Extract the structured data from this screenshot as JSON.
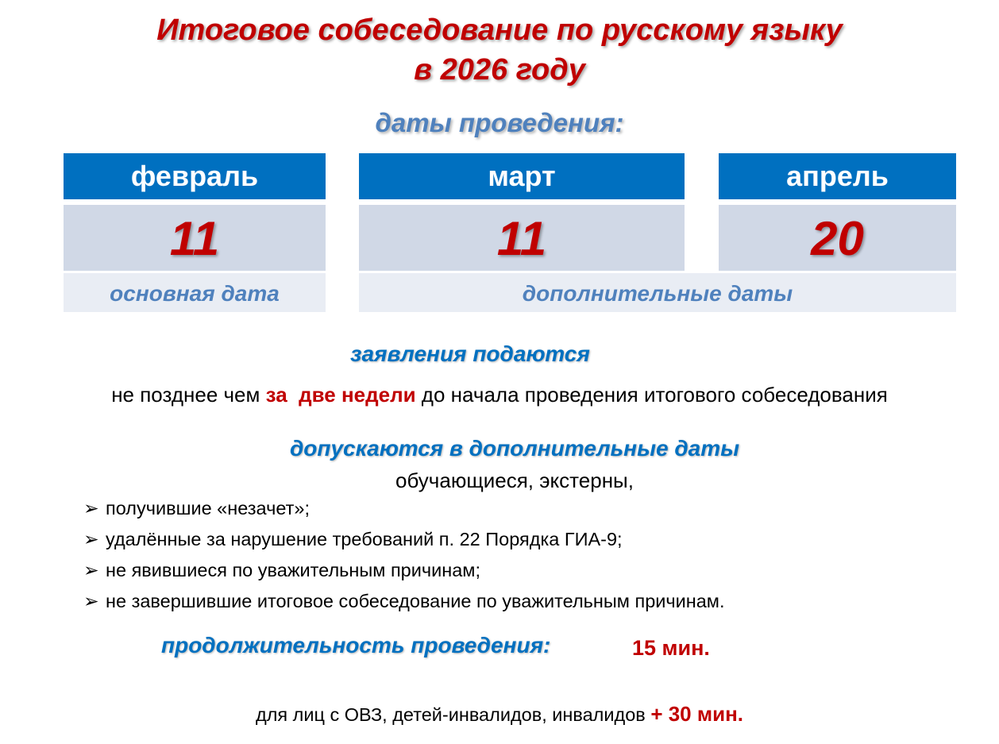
{
  "title": {
    "line1": "Итоговое собеседование по русскому языку",
    "line2": "в 2026 году"
  },
  "dates_heading": "даты проведения:",
  "columns": [
    {
      "month": "февраль",
      "day": "11"
    },
    {
      "month": "март",
      "day": "11"
    },
    {
      "month": "апрель",
      "day": "20"
    }
  ],
  "main_date_label": "основная дата",
  "additional_dates_label": "дополнительные даты",
  "applications": {
    "heading": "заявления подаются",
    "before": "не позднее чем ",
    "highlight1": "за",
    "highlight2": "две недели",
    "after": " до начала проведения итогового собеседования"
  },
  "admitted": {
    "heading": "допускаются в дополнительные даты",
    "intro": "обучающиеся, экстерны,",
    "items": [
      "получившие «незачет»;",
      "удалённые за нарушение требований п. 22 Порядка ГИА-9;",
      "не явившиеся по уважительным причинам;",
      "не завершившие итоговое собеседование по уважительным причинам."
    ],
    "bullet_icon": "arrowhead-right"
  },
  "duration": {
    "label": "продолжительность проведения:",
    "value": "15 мин."
  },
  "extra": {
    "text": "для лиц с ОВЗ, детей-инвалидов, инвалидов ",
    "value": "+ 30 мин."
  },
  "colors": {
    "title": "#c00000",
    "header": "#0070c0",
    "accent": "#4f81bd",
    "row": "#d0d8e6",
    "note": "#e9edf4"
  }
}
